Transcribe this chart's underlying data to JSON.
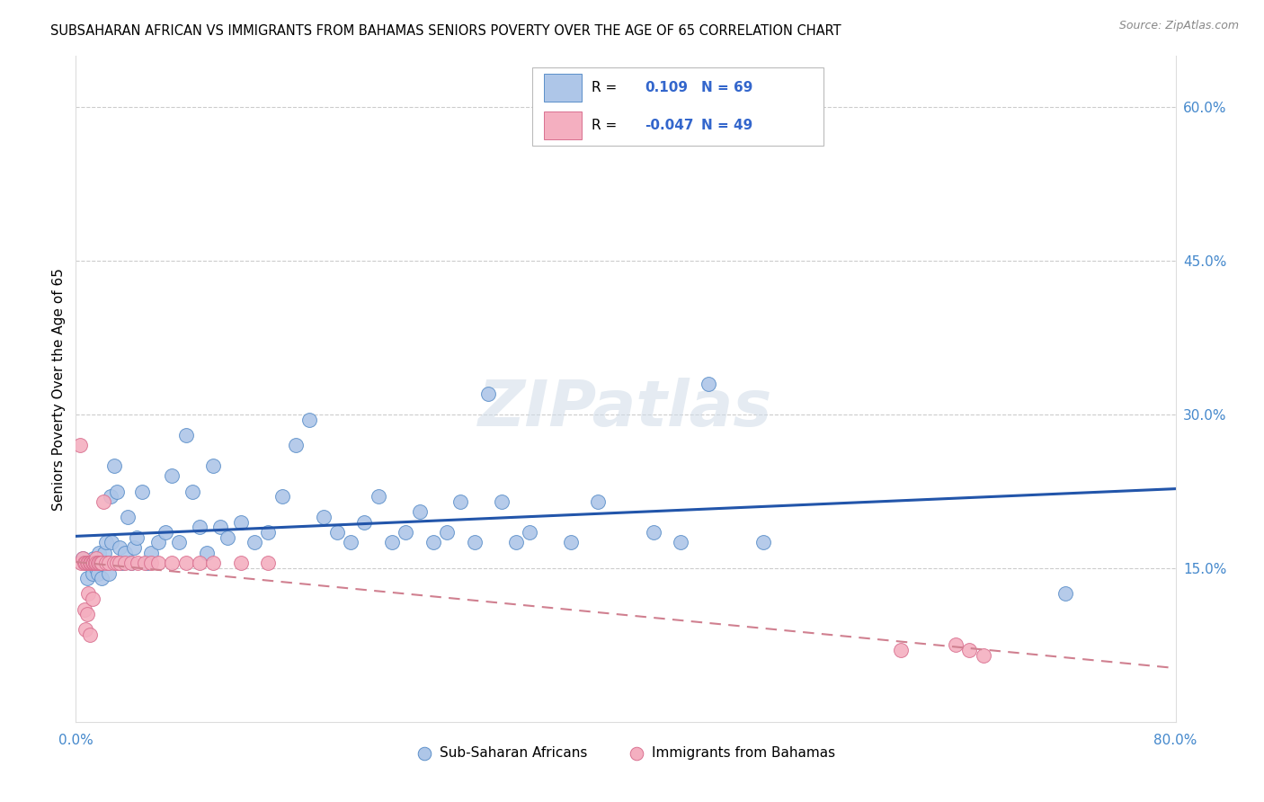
{
  "title": "SUBSAHARAN AFRICAN VS IMMIGRANTS FROM BAHAMAS SENIORS POVERTY OVER THE AGE OF 65 CORRELATION CHART",
  "source": "Source: ZipAtlas.com",
  "ylabel": "Seniors Poverty Over the Age of 65",
  "xlim": [
    0.0,
    0.8
  ],
  "ylim": [
    0.0,
    0.65
  ],
  "xticks": [
    0.0,
    0.1,
    0.2,
    0.3,
    0.4,
    0.5,
    0.6,
    0.7,
    0.8
  ],
  "xticklabels": [
    "0.0%",
    "",
    "",
    "",
    "",
    "",
    "",
    "",
    "80.0%"
  ],
  "ytick_right_labels": [
    "60.0%",
    "45.0%",
    "30.0%",
    "15.0%"
  ],
  "ytick_right_values": [
    0.6,
    0.45,
    0.3,
    0.15
  ],
  "blue_R": "0.109",
  "blue_N": "69",
  "pink_R": "-0.047",
  "pink_N": "49",
  "blue_color": "#aec6e8",
  "blue_edge_color": "#5b8fc9",
  "pink_color": "#f4afc0",
  "pink_edge_color": "#d97090",
  "blue_line_color": "#2255aa",
  "pink_line_color": "#d08090",
  "legend_label_blue": "Sub-Saharan Africans",
  "legend_label_pink": "Immigrants from Bahamas",
  "watermark": "ZIPatlas",
  "blue_scatter_x": [
    0.005,
    0.008,
    0.01,
    0.012,
    0.013,
    0.015,
    0.016,
    0.017,
    0.018,
    0.019,
    0.02,
    0.021,
    0.022,
    0.023,
    0.024,
    0.025,
    0.026,
    0.028,
    0.03,
    0.032,
    0.034,
    0.036,
    0.038,
    0.04,
    0.042,
    0.044,
    0.048,
    0.052,
    0.055,
    0.06,
    0.065,
    0.07,
    0.075,
    0.08,
    0.085,
    0.09,
    0.095,
    0.1,
    0.105,
    0.11,
    0.12,
    0.13,
    0.14,
    0.15,
    0.16,
    0.17,
    0.18,
    0.19,
    0.2,
    0.21,
    0.22,
    0.23,
    0.24,
    0.25,
    0.26,
    0.27,
    0.28,
    0.29,
    0.3,
    0.31,
    0.32,
    0.33,
    0.36,
    0.38,
    0.42,
    0.44,
    0.46,
    0.5,
    0.72
  ],
  "blue_scatter_y": [
    0.16,
    0.14,
    0.155,
    0.145,
    0.16,
    0.15,
    0.145,
    0.165,
    0.155,
    0.14,
    0.155,
    0.165,
    0.175,
    0.155,
    0.145,
    0.22,
    0.175,
    0.25,
    0.225,
    0.17,
    0.155,
    0.165,
    0.2,
    0.155,
    0.17,
    0.18,
    0.225,
    0.155,
    0.165,
    0.175,
    0.185,
    0.24,
    0.175,
    0.28,
    0.225,
    0.19,
    0.165,
    0.25,
    0.19,
    0.18,
    0.195,
    0.175,
    0.185,
    0.22,
    0.27,
    0.295,
    0.2,
    0.185,
    0.175,
    0.195,
    0.22,
    0.175,
    0.185,
    0.205,
    0.175,
    0.185,
    0.215,
    0.175,
    0.32,
    0.215,
    0.175,
    0.185,
    0.175,
    0.215,
    0.185,
    0.175,
    0.33,
    0.175,
    0.125
  ],
  "pink_scatter_x": [
    0.003,
    0.004,
    0.005,
    0.006,
    0.006,
    0.007,
    0.007,
    0.008,
    0.008,
    0.009,
    0.009,
    0.01,
    0.01,
    0.011,
    0.011,
    0.012,
    0.012,
    0.013,
    0.013,
    0.014,
    0.014,
    0.015,
    0.015,
    0.016,
    0.017,
    0.018,
    0.019,
    0.02,
    0.022,
    0.024,
    0.028,
    0.03,
    0.032,
    0.036,
    0.04,
    0.045,
    0.05,
    0.055,
    0.06,
    0.07,
    0.08,
    0.09,
    0.1,
    0.12,
    0.14,
    0.6,
    0.64,
    0.65,
    0.66
  ],
  "pink_scatter_y": [
    0.27,
    0.155,
    0.16,
    0.155,
    0.11,
    0.155,
    0.09,
    0.155,
    0.105,
    0.155,
    0.125,
    0.155,
    0.085,
    0.155,
    0.155,
    0.155,
    0.12,
    0.155,
    0.155,
    0.155,
    0.155,
    0.16,
    0.155,
    0.155,
    0.155,
    0.155,
    0.155,
    0.215,
    0.155,
    0.155,
    0.155,
    0.155,
    0.155,
    0.155,
    0.155,
    0.155,
    0.155,
    0.155,
    0.155,
    0.155,
    0.155,
    0.155,
    0.155,
    0.155,
    0.155,
    0.07,
    0.075,
    0.07,
    0.065
  ]
}
